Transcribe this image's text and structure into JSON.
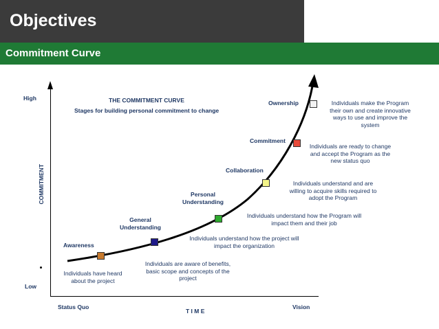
{
  "header": {
    "title": "Objectives",
    "subtitle": "Commitment Curve"
  },
  "diagram": {
    "title": "THE COMMITMENT CURVE",
    "subtitle": "Stages for building personal commitment to change",
    "y_axis": {
      "label": "COMMITMENT",
      "high": "High",
      "low": "Low"
    },
    "x_axis": {
      "label": "T I M E",
      "start": "Status Quo",
      "end": "Vision"
    },
    "stages": [
      {
        "name": "Awareness",
        "color": "#c77a2e",
        "description": "Individuals have  heard about the project"
      },
      {
        "name": "General Understanding",
        "color": "#1f1a8a",
        "description": "Individuals are aware of benefits, basic scope and concepts of  the project"
      },
      {
        "name": "Personal Understanding",
        "color": "#2eaa2e",
        "description": "Individuals understand how the project will impact the organization"
      },
      {
        "name": "Collaboration",
        "color": "#f4f58a",
        "description": "Individuals understand how the Program will impact them and their job"
      },
      {
        "name": "Commitment",
        "color": "#e84a3a",
        "description": "Individuals understand and are willing to acquire skills required to adopt the Program"
      },
      {
        "name": "Ownership",
        "color": "#f2f2f2",
        "description": "Individuals are ready to change and accept the Program as the new status quo"
      }
    ],
    "top_note": "Individuals make the Program their own and create innovative ways to use and improve the system"
  }
}
